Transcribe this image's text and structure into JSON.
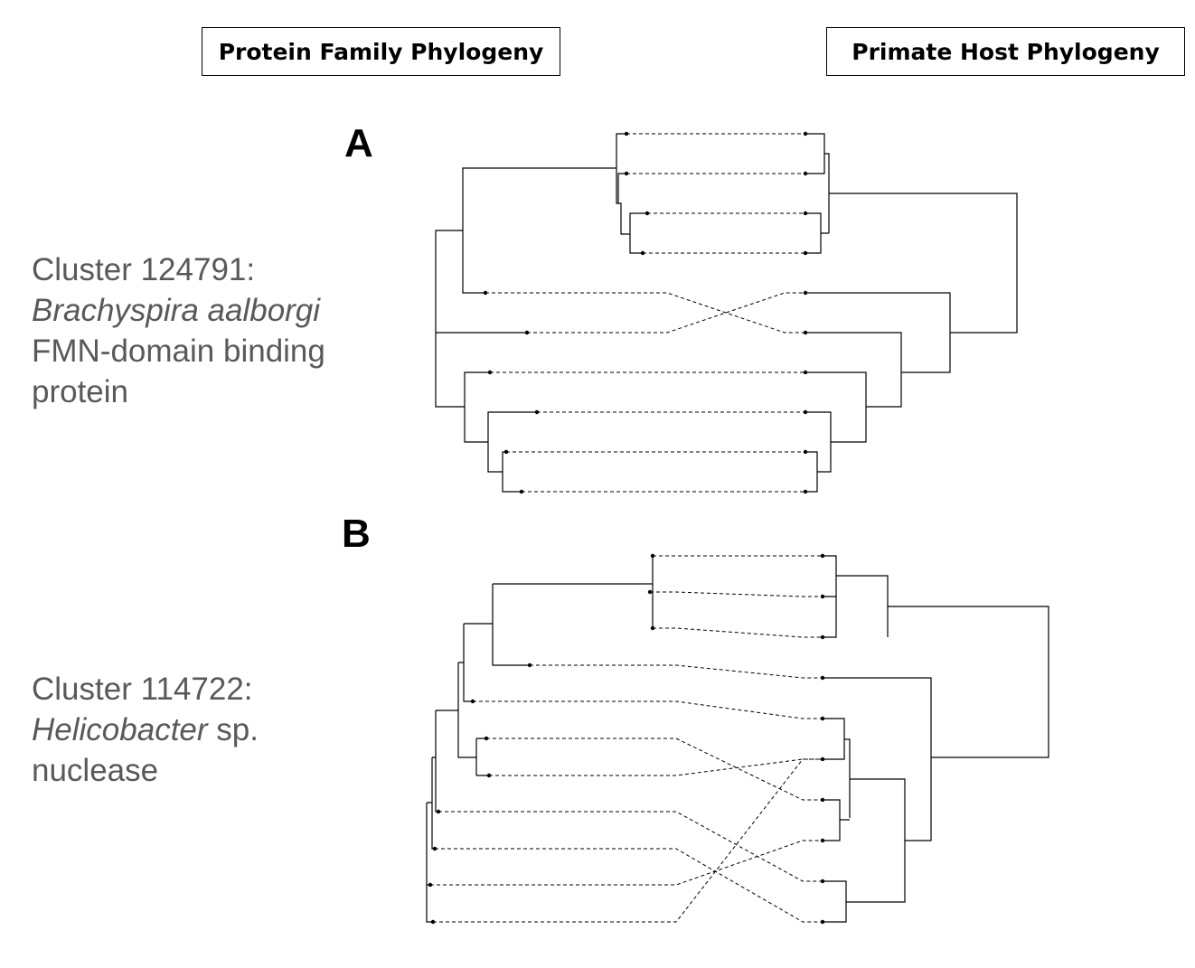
{
  "headers": {
    "left": "Protein Family Phylogeny",
    "right": "Primate Host Phylogeny"
  },
  "panels": [
    {
      "letter": "A",
      "label_lines": {
        "line1": "Cluster 124791:",
        "line2_italic": "Brachyspira aalborgi",
        "line3": "FMN-domain binding",
        "line4": "protein"
      }
    },
    {
      "letter": "B",
      "label_lines": {
        "line1": "Cluster 114722:",
        "line2_italic": "Helicobacter",
        "line2_rest": " sp.",
        "line3": "nuclease"
      }
    }
  ],
  "tanglegrams": [
    {
      "panel": "A",
      "tip_count": 10,
      "links": [
        [
          0,
          0
        ],
        [
          1,
          1
        ],
        [
          2,
          2
        ],
        [
          3,
          3
        ],
        [
          4,
          5
        ],
        [
          5,
          4
        ],
        [
          6,
          6
        ],
        [
          7,
          7
        ],
        [
          8,
          8
        ],
        [
          9,
          9
        ]
      ],
      "crossing_links": 2
    },
    {
      "panel": "B",
      "tip_count": 10,
      "links": [
        [
          0,
          0
        ],
        [
          1,
          1
        ],
        [
          2,
          2
        ],
        [
          3,
          3
        ],
        [
          4,
          4
        ],
        [
          5,
          6
        ],
        [
          6,
          5
        ],
        [
          7,
          8
        ],
        [
          8,
          9
        ],
        [
          9,
          7
        ]
      ],
      "crossing_links": 5
    }
  ]
}
